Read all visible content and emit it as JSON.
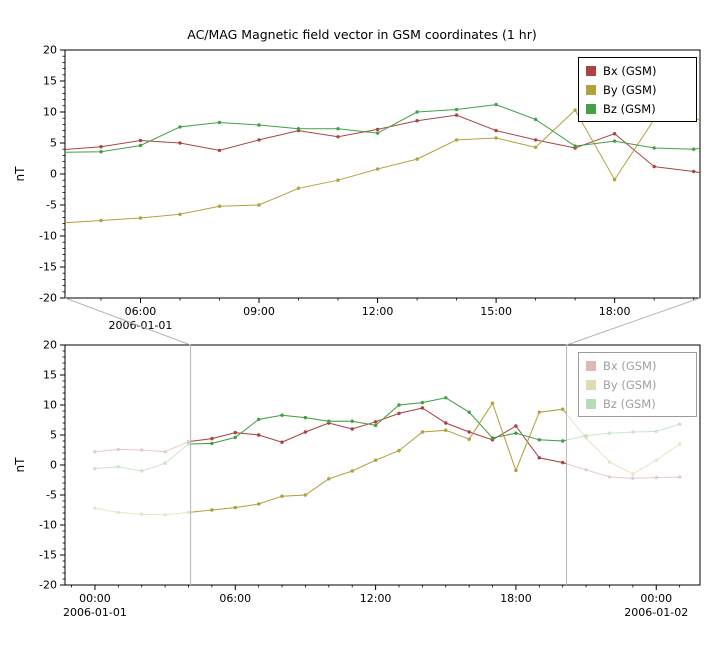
{
  "colors": {
    "background": "#ffffff",
    "axis": "#000000",
    "connector": "#b4b4b4"
  },
  "chart_data": {
    "type": "line",
    "title": "AC/MAG  Magnetic field vector in GSM coordinates (1 hr)",
    "x_start_date": "2006-01-01",
    "x_unit": "hours since 2006-01-01 00:00",
    "x_hours": [
      0,
      1,
      2,
      3,
      4,
      5,
      6,
      7,
      8,
      9,
      10,
      11,
      12,
      13,
      14,
      15,
      16,
      17,
      18,
      19,
      20,
      21,
      22,
      23,
      24,
      25
    ],
    "series": [
      {
        "name": "Bx (GSM)",
        "color": "#aa4444",
        "values": [
          2.2,
          2.6,
          2.5,
          2.2,
          3.9,
          4.4,
          5.4,
          5.0,
          3.8,
          5.5,
          7.0,
          6.0,
          7.2,
          8.6,
          9.5,
          7.0,
          5.5,
          4.2,
          6.5,
          1.2,
          0.4,
          -0.8,
          -2.0,
          -2.2,
          -2.1,
          -2.0
        ]
      },
      {
        "name": "By (GSM)",
        "color": "#b0a23c",
        "values": [
          -7.2,
          -7.9,
          -8.2,
          -8.3,
          -7.9,
          -7.5,
          -7.1,
          -6.5,
          -5.2,
          -5.0,
          -2.3,
          -1.0,
          0.8,
          2.4,
          5.5,
          5.8,
          4.3,
          10.3,
          -0.9,
          8.8,
          9.3,
          4.5,
          0.5,
          -1.5,
          0.8,
          3.5
        ]
      },
      {
        "name": "Bz (GSM)",
        "color": "#44a044",
        "values": [
          -0.6,
          -0.3,
          -1.0,
          0.3,
          3.5,
          3.6,
          4.6,
          7.6,
          8.3,
          7.9,
          7.3,
          7.3,
          6.6,
          10.0,
          10.4,
          11.2,
          8.8,
          4.5,
          5.3,
          4.2,
          4.0,
          4.9,
          5.3,
          5.5,
          5.6,
          6.8
        ]
      }
    ],
    "legend": {
      "position": "top-right",
      "labels": [
        "Bx (GSM)",
        "By (GSM)",
        "Bz (GSM)"
      ]
    },
    "panels": [
      {
        "id": "top",
        "ylabel": "nT",
        "ylim": [
          -20,
          20
        ],
        "yticks": [
          20,
          15,
          10,
          5,
          0,
          -5,
          -10,
          -15,
          -20
        ],
        "xlim_hours": [
          4.09,
          20.16
        ],
        "xticks": [
          {
            "hour": 6,
            "label": "06:00"
          },
          {
            "hour": 9,
            "label": "09:00"
          },
          {
            "hour": 12,
            "label": "12:00"
          },
          {
            "hour": 15,
            "label": "15:00"
          },
          {
            "hour": 18,
            "label": "18:00"
          }
        ],
        "date_labels": [
          {
            "hour": 6,
            "label": "2006-01-01"
          }
        ]
      },
      {
        "id": "bottom",
        "ylabel": "nT",
        "ylim": [
          -20,
          20
        ],
        "yticks": [
          20,
          15,
          10,
          5,
          0,
          -5,
          -10,
          -15,
          -20
        ],
        "xlim_hours": [
          -1.28,
          25.87
        ],
        "xticks": [
          {
            "hour": 0,
            "label": "00:00"
          },
          {
            "hour": 6,
            "label": "06:00"
          },
          {
            "hour": 12,
            "label": "12:00"
          },
          {
            "hour": 18,
            "label": "18:00"
          },
          {
            "hour": 24,
            "label": "00:00"
          }
        ],
        "date_labels": [
          {
            "hour": 0,
            "label": "2006-01-01"
          },
          {
            "hour": 24,
            "label": "2006-01-02"
          }
        ],
        "selection_hours": [
          4.09,
          20.16
        ],
        "dim_outside_selection": true
      }
    ]
  }
}
